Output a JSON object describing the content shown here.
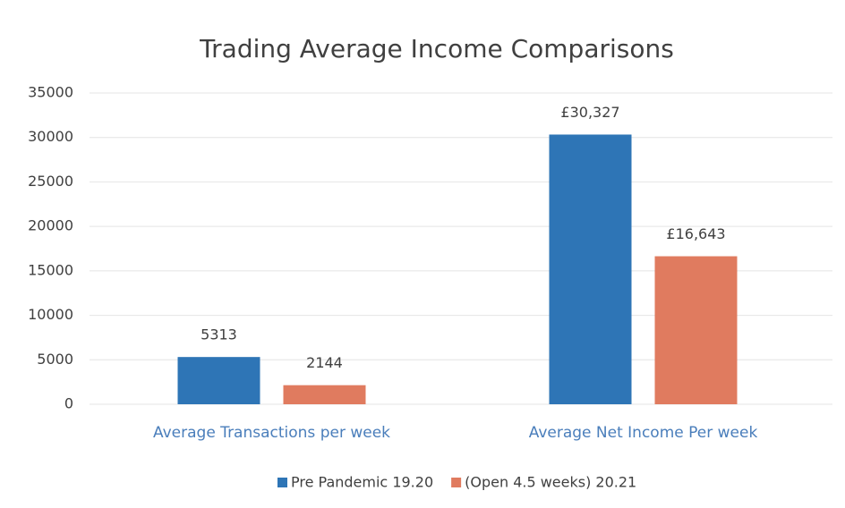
{
  "chart_data": {
    "type": "bar",
    "title": "Trading Average Income Comparisons",
    "categories": [
      "Average Transactions per week",
      "Average Net Income Per week"
    ],
    "series": [
      {
        "name": "Pre Pandemic 19.20",
        "color": "#2e75b6",
        "values": [
          5313,
          30327
        ],
        "value_labels": [
          "5313",
          "£30,327"
        ]
      },
      {
        "name": "(Open 4.5 weeks) 20.21",
        "color": "#e07b5f",
        "values": [
          2144,
          16643
        ],
        "value_labels": [
          "2144",
          "£16,643"
        ]
      }
    ],
    "ylim": [
      0,
      35000
    ],
    "yticks": [
      0,
      5000,
      10000,
      15000,
      20000,
      25000,
      30000,
      35000
    ],
    "grid": true,
    "legend": "bottom"
  }
}
